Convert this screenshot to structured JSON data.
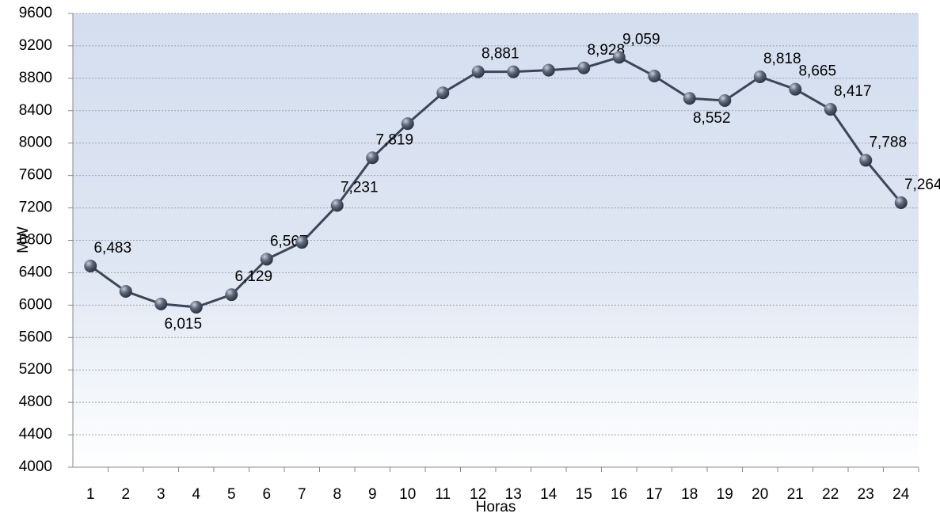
{
  "chart_data": {
    "type": "line",
    "x_label": "Horas",
    "y_label": "MW",
    "categories": [
      "1",
      "2",
      "3",
      "4",
      "5",
      "6",
      "7",
      "8",
      "9",
      "10",
      "11",
      "12",
      "13",
      "14",
      "15",
      "16",
      "17",
      "18",
      "19",
      "20",
      "21",
      "22",
      "23",
      "24"
    ],
    "values": [
      6483,
      6170,
      6015,
      5975,
      6129,
      6567,
      6775,
      7231,
      7819,
      8240,
      8620,
      8881,
      8880,
      8900,
      8928,
      9059,
      8828,
      8552,
      8525,
      8818,
      8665,
      8417,
      7788,
      7264
    ],
    "value_labels": [
      "6,483",
      null,
      "6,015",
      null,
      "6,129",
      "6,567",
      null,
      "7,231",
      "7,819",
      null,
      null,
      "8,881",
      null,
      null,
      "8,928",
      "9,059",
      null,
      "8,552",
      null,
      "8,818",
      "8,665",
      "8,417",
      "7,788",
      "7,264"
    ],
    "color": "#3b4658",
    "ylim": [
      4000,
      9600
    ],
    "yticks": [
      4000,
      4400,
      4800,
      5200,
      5600,
      6000,
      6400,
      6800,
      7200,
      7600,
      8000,
      8400,
      8800,
      9200,
      9600
    ],
    "grid": true
  }
}
